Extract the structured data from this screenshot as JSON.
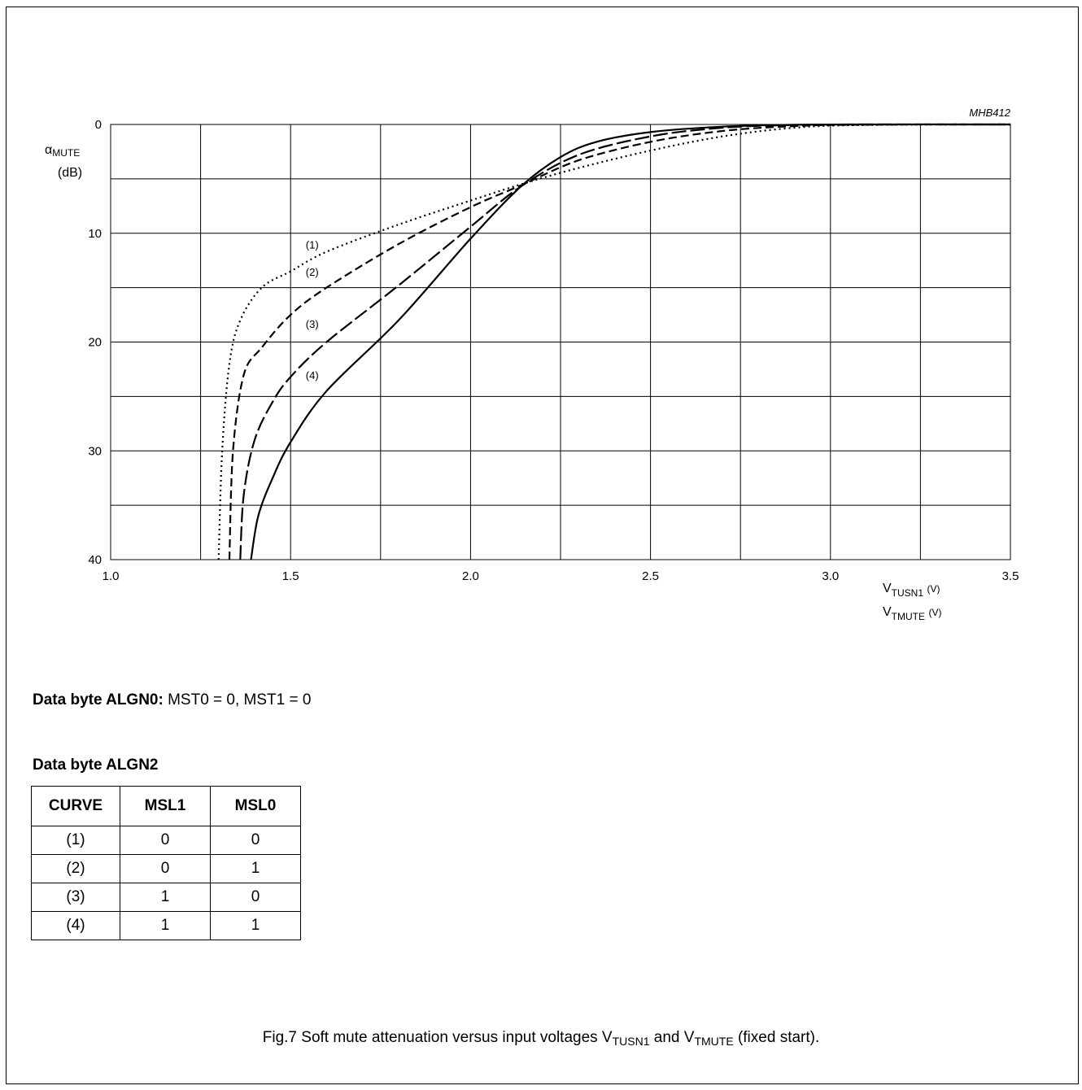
{
  "figure_code": "MHB412",
  "chart_data": {
    "type": "line",
    "title": "",
    "ylabel_main": "α",
    "ylabel_sub": "MUTE",
    "ylabel_unit": "(dB)",
    "xlabel_line1": {
      "v": "V",
      "sub": "TUSN1",
      "unit": "(V)"
    },
    "xlabel_line2": {
      "v": "V",
      "sub": "TMUTE",
      "unit": "(V)"
    },
    "xlim": [
      1.0,
      3.5
    ],
    "ylim": [
      0,
      40
    ],
    "y_inverted": true,
    "grid": true,
    "x_ticks": [
      "1.0",
      "1.5",
      "2.0",
      "2.5",
      "3.0",
      "3.5"
    ],
    "y_ticks": [
      "0",
      "10",
      "20",
      "30",
      "40"
    ],
    "series": [
      {
        "name": "(1)",
        "style": "dotted",
        "points": [
          [
            1.3,
            40
          ],
          [
            1.31,
            30
          ],
          [
            1.33,
            22
          ],
          [
            1.36,
            18
          ],
          [
            1.42,
            15
          ],
          [
            1.5,
            13.5
          ],
          [
            1.6,
            11.7
          ],
          [
            1.8,
            9.2
          ],
          [
            2.0,
            7.0
          ],
          [
            2.14,
            5.5
          ],
          [
            2.3,
            4.0
          ],
          [
            2.5,
            2.4
          ],
          [
            2.7,
            1.1
          ],
          [
            2.9,
            0.3
          ],
          [
            3.1,
            0.05
          ],
          [
            3.5,
            0
          ]
        ]
      },
      {
        "name": "(2)",
        "style": "dashed",
        "points": [
          [
            1.33,
            40
          ],
          [
            1.34,
            30
          ],
          [
            1.37,
            23
          ],
          [
            1.42,
            20.5
          ],
          [
            1.5,
            17.5
          ],
          [
            1.6,
            15.0
          ],
          [
            1.8,
            11.0
          ],
          [
            2.0,
            7.6
          ],
          [
            2.14,
            5.6
          ],
          [
            2.3,
            3.3
          ],
          [
            2.5,
            1.6
          ],
          [
            2.7,
            0.6
          ],
          [
            2.9,
            0.15
          ],
          [
            3.1,
            0.02
          ],
          [
            3.5,
            0
          ]
        ]
      },
      {
        "name": "(3)",
        "style": "longdash",
        "points": [
          [
            1.36,
            40
          ],
          [
            1.37,
            34
          ],
          [
            1.4,
            29
          ],
          [
            1.45,
            25.5
          ],
          [
            1.5,
            23.2
          ],
          [
            1.6,
            20.0
          ],
          [
            1.8,
            14.8
          ],
          [
            2.0,
            9.4
          ],
          [
            2.14,
            5.7
          ],
          [
            2.3,
            2.8
          ],
          [
            2.5,
            1.1
          ],
          [
            2.7,
            0.3
          ],
          [
            2.9,
            0.05
          ],
          [
            3.1,
            0
          ],
          [
            3.5,
            0
          ]
        ]
      },
      {
        "name": "(4)",
        "style": "solid",
        "points": [
          [
            1.39,
            40
          ],
          [
            1.41,
            36
          ],
          [
            1.45,
            32.5
          ],
          [
            1.5,
            29.2
          ],
          [
            1.6,
            24.5
          ],
          [
            1.8,
            18.0
          ],
          [
            2.0,
            10.5
          ],
          [
            2.14,
            5.7
          ],
          [
            2.25,
            3.0
          ],
          [
            2.35,
            1.6
          ],
          [
            2.5,
            0.7
          ],
          [
            2.7,
            0.2
          ],
          [
            2.9,
            0.03
          ],
          [
            3.1,
            0
          ],
          [
            3.5,
            0
          ]
        ]
      }
    ],
    "curve_labels": [
      {
        "text": "(1)",
        "x": 1.56,
        "y": 11.1
      },
      {
        "text": "(2)",
        "x": 1.56,
        "y": 13.6
      },
      {
        "text": "(3)",
        "x": 1.56,
        "y": 18.4
      },
      {
        "text": "(4)",
        "x": 1.56,
        "y": 23.1
      }
    ]
  },
  "note": {
    "bold": "Data byte ALGN0:",
    "rest": " MST0 = 0, MST1 = 0"
  },
  "table": {
    "title": "Data byte ALGN2",
    "headers": [
      "CURVE",
      "MSL1",
      "MSL0"
    ],
    "rows": [
      [
        "(1)",
        "0",
        "0"
      ],
      [
        "(2)",
        "0",
        "1"
      ],
      [
        "(3)",
        "1",
        "0"
      ],
      [
        "(4)",
        "1",
        "1"
      ]
    ]
  },
  "caption": {
    "prefix": "Fig.7  Soft mute attenuation versus input voltages V",
    "sub1": "TUSN1",
    "mid": " and V",
    "sub2": "TMUTE",
    "suffix": " (fixed start)."
  }
}
